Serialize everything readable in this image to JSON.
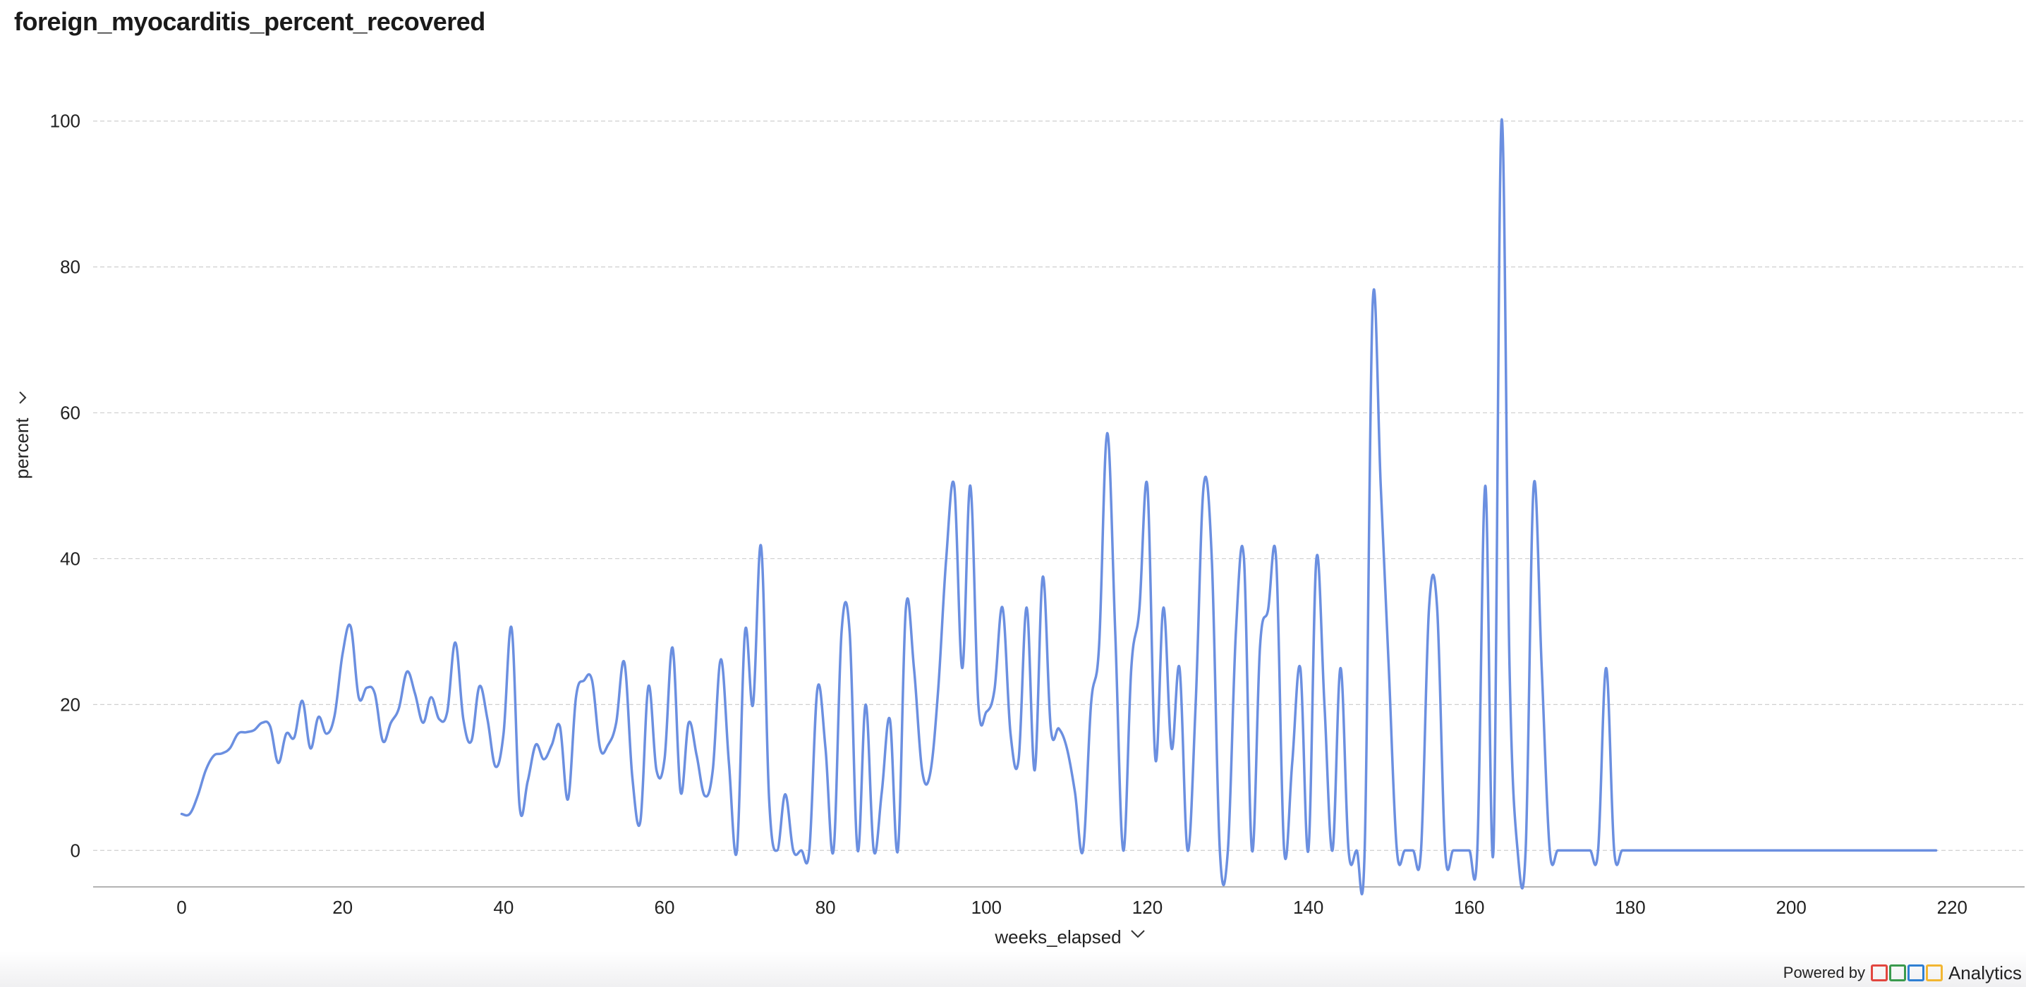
{
  "title": "foreign_myocarditis_percent_recovered",
  "footer": {
    "powered_by": "Powered by",
    "brand": "Analytics",
    "logo_colors": [
      "#e2463f",
      "#3a9a4e",
      "#2f7fd3",
      "#f2b632"
    ]
  },
  "colors": {
    "line": "#6b8fe0",
    "grid": "#cfcfcf",
    "axis": "#9a9a9a"
  },
  "chart_data": {
    "type": "line",
    "xlabel": "weeks_elapsed",
    "ylabel": "percent",
    "xlim": [
      -11,
      229
    ],
    "ylim": [
      -5,
      105
    ],
    "xticks": [
      0,
      20,
      40,
      60,
      80,
      100,
      120,
      140,
      160,
      180,
      200,
      220
    ],
    "yticks": [
      0,
      20,
      40,
      60,
      80,
      100
    ],
    "grid": "horizontal",
    "series": [
      {
        "points": [
          [
            0,
            5
          ],
          [
            1,
            5
          ],
          [
            2,
            7.5
          ],
          [
            3,
            11
          ],
          [
            4,
            13
          ],
          [
            5,
            13.3
          ],
          [
            6,
            14
          ],
          [
            7,
            16
          ],
          [
            8,
            16.2
          ],
          [
            9,
            16.5
          ],
          [
            10,
            17.5
          ],
          [
            11,
            17
          ],
          [
            12,
            12
          ],
          [
            13,
            16
          ],
          [
            14,
            15.5
          ],
          [
            15,
            20.5
          ],
          [
            16,
            14
          ],
          [
            17,
            18.3
          ],
          [
            18,
            16
          ],
          [
            19,
            18.5
          ],
          [
            20,
            27
          ],
          [
            21,
            30.7
          ],
          [
            22,
            21
          ],
          [
            23,
            22.3
          ],
          [
            24,
            21.5
          ],
          [
            25,
            15
          ],
          [
            26,
            17.5
          ],
          [
            27,
            19.5
          ],
          [
            28,
            24.5
          ],
          [
            29,
            21.5
          ],
          [
            30,
            17.5
          ],
          [
            31,
            21
          ],
          [
            32,
            18
          ],
          [
            33,
            19
          ],
          [
            34,
            28.5
          ],
          [
            35,
            18
          ],
          [
            36,
            15
          ],
          [
            37,
            22.5
          ],
          [
            38,
            18
          ],
          [
            39,
            11.5
          ],
          [
            40,
            16
          ],
          [
            41,
            30.5
          ],
          [
            42,
            6
          ],
          [
            43,
            9.5
          ],
          [
            44,
            14.5
          ],
          [
            45,
            12.5
          ],
          [
            46,
            14.5
          ],
          [
            47,
            17
          ],
          [
            48,
            7
          ],
          [
            49,
            21
          ],
          [
            50,
            23.3
          ],
          [
            51,
            23.3
          ],
          [
            52,
            14
          ],
          [
            53,
            14.5
          ],
          [
            54,
            17.5
          ],
          [
            55,
            25.8
          ],
          [
            56,
            10
          ],
          [
            57,
            4
          ],
          [
            58,
            22.5
          ],
          [
            59,
            11
          ],
          [
            60,
            12.5
          ],
          [
            61,
            27.8
          ],
          [
            62,
            8
          ],
          [
            63,
            17.5
          ],
          [
            64,
            13
          ],
          [
            65,
            7.5
          ],
          [
            66,
            11
          ],
          [
            67,
            26.2
          ],
          [
            68,
            12
          ],
          [
            69,
            0
          ],
          [
            70,
            30
          ],
          [
            71,
            20
          ],
          [
            72,
            41.7
          ],
          [
            73,
            7
          ],
          [
            74,
            0
          ],
          [
            75,
            7.7
          ],
          [
            76,
            0
          ],
          [
            77,
            0
          ],
          [
            78,
            0
          ],
          [
            79,
            22.2
          ],
          [
            80,
            14
          ],
          [
            81,
            0
          ],
          [
            82,
            30
          ],
          [
            83,
            30
          ],
          [
            84,
            0
          ],
          [
            85,
            20
          ],
          [
            86,
            0
          ],
          [
            87,
            8
          ],
          [
            88,
            18
          ],
          [
            89,
            0
          ],
          [
            90,
            33.3
          ],
          [
            91,
            25
          ],
          [
            92,
            11
          ],
          [
            93,
            10.5
          ],
          [
            94,
            22
          ],
          [
            95,
            40
          ],
          [
            96,
            50
          ],
          [
            97,
            25
          ],
          [
            98,
            50
          ],
          [
            99,
            20
          ],
          [
            100,
            19
          ],
          [
            101,
            22
          ],
          [
            102,
            33.3
          ],
          [
            103,
            16
          ],
          [
            104,
            12.5
          ],
          [
            105,
            33.3
          ],
          [
            106,
            11
          ],
          [
            107,
            37.5
          ],
          [
            108,
            16.7
          ],
          [
            109,
            16.7
          ],
          [
            110,
            14
          ],
          [
            111,
            8
          ],
          [
            112,
            0
          ],
          [
            113,
            20
          ],
          [
            114,
            28
          ],
          [
            115,
            57.2
          ],
          [
            116,
            30
          ],
          [
            117,
            0
          ],
          [
            118,
            25
          ],
          [
            119,
            33
          ],
          [
            120,
            50
          ],
          [
            121,
            12.5
          ],
          [
            122,
            33.3
          ],
          [
            123,
            14
          ],
          [
            124,
            25
          ],
          [
            125,
            0
          ],
          [
            126,
            20
          ],
          [
            127,
            50
          ],
          [
            128,
            40
          ],
          [
            129,
            0
          ],
          [
            130,
            0
          ],
          [
            131,
            30
          ],
          [
            132,
            40
          ],
          [
            133,
            0
          ],
          [
            134,
            28
          ],
          [
            135,
            33
          ],
          [
            136,
            40
          ],
          [
            137,
            0
          ],
          [
            138,
            12
          ],
          [
            139,
            25
          ],
          [
            140,
            0
          ],
          [
            141,
            40
          ],
          [
            142,
            20
          ],
          [
            143,
            0
          ],
          [
            144,
            25
          ],
          [
            145,
            0
          ],
          [
            146,
            0
          ],
          [
            147,
            0
          ],
          [
            148,
            75
          ],
          [
            149,
            50
          ],
          [
            150,
            25
          ],
          [
            151,
            0
          ],
          [
            152,
            0
          ],
          [
            153,
            0
          ],
          [
            154,
            0
          ],
          [
            155,
            33.3
          ],
          [
            156,
            33.3
          ],
          [
            157,
            0
          ],
          [
            158,
            0
          ],
          [
            159,
            0
          ],
          [
            160,
            0
          ],
          [
            161,
            0
          ],
          [
            162,
            50
          ],
          [
            163,
            0
          ],
          [
            164,
            100
          ],
          [
            165,
            25
          ],
          [
            166,
            0
          ],
          [
            167,
            0
          ],
          [
            168,
            50
          ],
          [
            169,
            25
          ],
          [
            170,
            0
          ],
          [
            171,
            0
          ],
          [
            172,
            0
          ],
          [
            173,
            0
          ],
          [
            174,
            0
          ],
          [
            175,
            0
          ],
          [
            176,
            0
          ],
          [
            177,
            25
          ],
          [
            178,
            0
          ],
          [
            179,
            0
          ],
          [
            180,
            0
          ],
          [
            185,
            0
          ],
          [
            190,
            0
          ],
          [
            195,
            0
          ],
          [
            200,
            0
          ],
          [
            205,
            0
          ],
          [
            210,
            0
          ],
          [
            215,
            0
          ],
          [
            218,
            0
          ]
        ]
      }
    ]
  }
}
